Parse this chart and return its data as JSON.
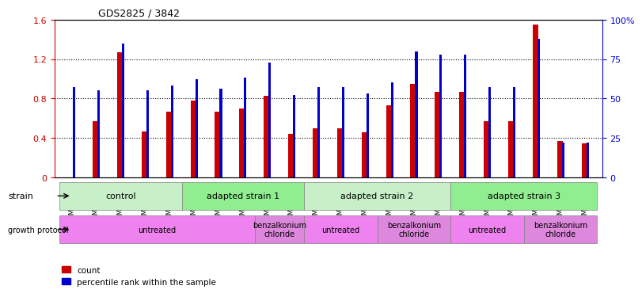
{
  "title": "GDS2825 / 3842",
  "samples": [
    "GSM153894",
    "GSM154801",
    "GSM154802",
    "GSM154803",
    "GSM154804",
    "GSM154805",
    "GSM154808",
    "GSM154814",
    "GSM154819",
    "GSM154823",
    "GSM154806",
    "GSM154809",
    "GSM154812",
    "GSM154816",
    "GSM154820",
    "GSM154824",
    "GSM154807",
    "GSM154810",
    "GSM154813",
    "GSM154818",
    "GSM154821",
    "GSM154825"
  ],
  "red_values": [
    0.0,
    0.57,
    1.27,
    0.47,
    0.67,
    0.78,
    0.67,
    0.7,
    0.83,
    0.44,
    0.5,
    0.5,
    0.46,
    0.73,
    0.95,
    0.87,
    0.87,
    0.57,
    0.57,
    1.55,
    0.37,
    0.35
  ],
  "blue_values": [
    0.57,
    0.55,
    0.85,
    0.55,
    0.58,
    0.62,
    0.56,
    0.63,
    0.73,
    0.52,
    0.57,
    0.57,
    0.53,
    0.6,
    0.8,
    0.78,
    0.78,
    0.57,
    0.57,
    0.88,
    0.22,
    0.22
  ],
  "strain_groups": [
    {
      "label": "control",
      "start": 0,
      "end": 4,
      "color": "#c8f0c8"
    },
    {
      "label": "adapted strain 1",
      "start": 5,
      "end": 9,
      "color": "#90ee90"
    },
    {
      "label": "adapted strain 2",
      "start": 10,
      "end": 15,
      "color": "#c8f0c8"
    },
    {
      "label": "adapted strain 3",
      "start": 16,
      "end": 21,
      "color": "#90ee90"
    }
  ],
  "protocol_groups": [
    {
      "label": "untreated",
      "start": 0,
      "end": 7,
      "color": "#ee82ee"
    },
    {
      "label": "benzalkonium\nchloride",
      "start": 8,
      "end": 9,
      "color": "#dd88dd"
    },
    {
      "label": "untreated",
      "start": 10,
      "end": 12,
      "color": "#ee82ee"
    },
    {
      "label": "benzalkonium\nchloride",
      "start": 13,
      "end": 15,
      "color": "#dd88dd"
    },
    {
      "label": "untreated",
      "start": 16,
      "end": 18,
      "color": "#ee82ee"
    },
    {
      "label": "benzalkonium\nchloride",
      "start": 19,
      "end": 21,
      "color": "#dd88dd"
    }
  ],
  "ylim_left": [
    0,
    1.6
  ],
  "ylim_right": [
    0,
    100
  ],
  "yticks_left": [
    0,
    0.4,
    0.8,
    1.2,
    1.6
  ],
  "yticks_right": [
    0,
    25,
    50,
    75,
    100
  ],
  "red_color": "#cc0000",
  "blue_color": "#0000cc",
  "bar_width": 0.35,
  "blue_bar_width": 0.12
}
